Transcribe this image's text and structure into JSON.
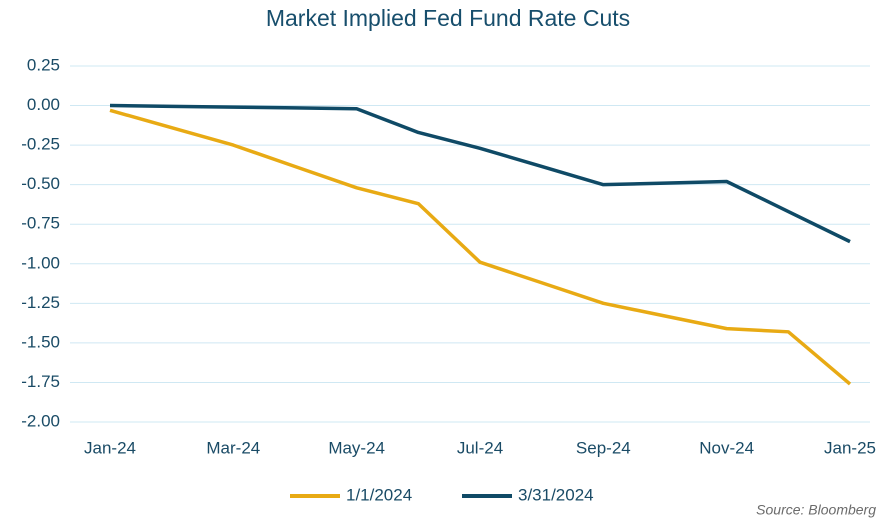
{
  "chart_data": {
    "type": "line",
    "title": "Market Implied Fed Fund Rate Cuts",
    "categories": [
      "Jan-24",
      null,
      "Mar-24",
      null,
      "May-24",
      null,
      "Jul-24",
      null,
      "Sep-24",
      null,
      "Nov-24",
      null,
      "Jan-25"
    ],
    "series": [
      {
        "name": "1/1/2024",
        "color": "#e8aa14",
        "values": [
          -0.03,
          -0.14,
          -0.25,
          -0.385,
          -0.52,
          -0.62,
          -0.99,
          -1.12,
          -1.25,
          -1.33,
          -1.41,
          -1.43,
          -1.76
        ]
      },
      {
        "name": "3/31/2024",
        "color": "#0f4a66",
        "values": [
          0,
          -0.005,
          -0.01,
          -0.015,
          -0.02,
          -0.17,
          -0.27,
          -0.385,
          -0.5,
          -0.49,
          -0.48,
          -0.67,
          -0.86
        ]
      }
    ],
    "ylim": [
      -2,
      0.25
    ],
    "yticks": [
      0.25,
      {
        "value": 0,
        "label": "0.00"
      },
      -0.25,
      {
        "value": -0.5,
        "label": "-0.50"
      },
      -0.75,
      {
        "value": -1,
        "label": "-1.00"
      },
      -1.25,
      {
        "value": -1.5,
        "label": "-1.50"
      },
      -1.75,
      {
        "value": -2,
        "label": "-2.00"
      }
    ],
    "grid": true,
    "legend": "bottom",
    "source": "Source: Bloomberg"
  }
}
